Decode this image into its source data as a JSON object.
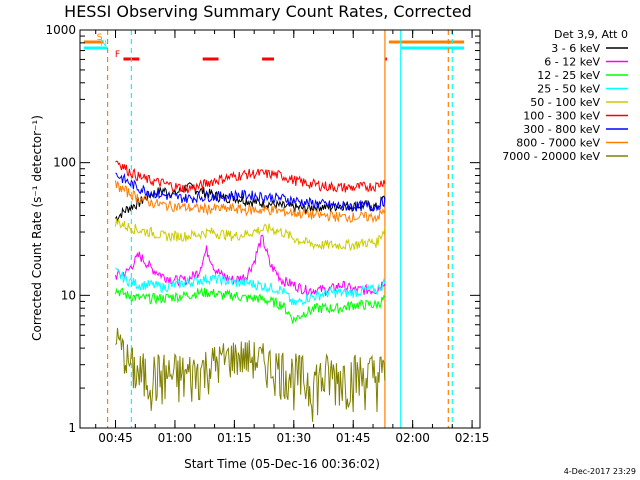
{
  "chart_data": {
    "type": "line",
    "title": "HESSI Observing Summary Count Rates, Corrected",
    "xlabel": "Start Time (05-Dec-16 00:36:02)",
    "ylabel": "Corrected Count Rate (s⁻¹ detector⁻¹)",
    "y_scale": "log",
    "ylim": [
      1,
      1000
    ],
    "xlim": [
      "00:36:02",
      "02:17:00"
    ],
    "x_ticks": [
      "00:45",
      "01:00",
      "01:15",
      "01:30",
      "01:45",
      "02:00",
      "02:15"
    ],
    "y_ticks": [
      "1",
      "10",
      "100",
      "1000"
    ],
    "grid": false,
    "legend_position": "right",
    "legend_title": "Det 3,9, Att 0",
    "footer": "4-Dec-2017 23:29",
    "flags": [
      {
        "label": "S",
        "color": "#ff7f00",
        "start": "00:37",
        "end": "00:42"
      },
      {
        "label": "N",
        "color": "#00ffff",
        "start": "00:37",
        "end": "00:43"
      },
      {
        "label": "F",
        "color": "#ff0000",
        "segments": [
          [
            "00:47",
            "00:51"
          ],
          [
            "01:07",
            "01:11"
          ],
          [
            "01:22",
            "01:25"
          ],
          [
            "01:53",
            "01:53"
          ]
        ]
      }
    ],
    "markers": [
      {
        "time": "00:43",
        "color": "#ff7f00",
        "style": "dashed"
      },
      {
        "time": "00:49",
        "color": "#00ffff",
        "style": "dashed"
      },
      {
        "time": "01:53",
        "color": "#ff7f00",
        "style": "solid"
      },
      {
        "time": "01:57",
        "color": "#00ffff",
        "style": "solid"
      },
      {
        "time": "02:09",
        "color": "#ff7f00",
        "style": "dashed"
      },
      {
        "time": "02:10",
        "color": "#00ffff",
        "style": "dashed"
      }
    ],
    "series": [
      {
        "name": "3 - 6 keV",
        "color": "#000000",
        "x": [
          "00:45",
          "00:48",
          "00:51",
          "00:54",
          "00:57",
          "01:00",
          "01:03",
          "01:06",
          "01:09",
          "01:12",
          "01:15",
          "01:18",
          "01:21",
          "01:24",
          "01:27",
          "01:30",
          "01:33",
          "01:36",
          "01:39",
          "01:42",
          "01:45",
          "01:48",
          "01:51",
          "01:53"
        ],
        "y": [
          38,
          45,
          50,
          58,
          62,
          58,
          66,
          62,
          58,
          54,
          55,
          52,
          50,
          49,
          47,
          46,
          45,
          47,
          46,
          48,
          47,
          48,
          46,
          55
        ]
      },
      {
        "name": "6 - 12 keV",
        "color": "#ff00ff",
        "x": [
          "00:45",
          "00:48",
          "00:51",
          "00:54",
          "00:57",
          "01:00",
          "01:03",
          "01:06",
          "01:08",
          "01:10",
          "01:12",
          "01:15",
          "01:18",
          "01:20",
          "01:22",
          "01:24",
          "01:27",
          "01:30",
          "01:33",
          "01:36",
          "01:39",
          "01:42",
          "01:45",
          "01:48",
          "01:51",
          "01:53"
        ],
        "y": [
          14,
          15,
          20,
          16,
          14,
          13,
          13,
          15,
          22,
          16,
          14,
          13,
          14,
          18,
          27,
          17,
          13,
          12,
          11,
          11,
          11,
          12,
          11,
          11,
          11,
          13
        ]
      },
      {
        "name": "12 - 25 keV",
        "color": "#00ff00",
        "x": [
          "00:45",
          "00:48",
          "00:51",
          "00:54",
          "00:57",
          "01:00",
          "01:03",
          "01:06",
          "01:09",
          "01:12",
          "01:15",
          "01:18",
          "01:21",
          "01:24",
          "01:27",
          "01:30",
          "01:33",
          "01:36",
          "01:39",
          "01:42",
          "01:45",
          "01:48",
          "01:51",
          "01:53"
        ],
        "y": [
          11,
          10,
          9.5,
          9.5,
          9.5,
          9.8,
          10,
          10.5,
          10.5,
          10,
          10,
          9.5,
          9.5,
          9,
          8.5,
          6.5,
          7.5,
          8,
          8,
          8,
          8.5,
          8.5,
          8.5,
          9.5
        ]
      },
      {
        "name": "25 - 50 keV",
        "color": "#00ffff",
        "x": [
          "00:45",
          "00:48",
          "00:51",
          "00:54",
          "00:57",
          "01:00",
          "01:03",
          "01:06",
          "01:09",
          "01:12",
          "01:15",
          "01:18",
          "01:21",
          "01:24",
          "01:27",
          "01:30",
          "01:33",
          "01:36",
          "01:39",
          "01:42",
          "01:45",
          "01:48",
          "01:51",
          "01:53"
        ],
        "y": [
          15,
          13,
          12,
          12,
          11.5,
          12,
          12.5,
          13,
          13.5,
          13,
          12.5,
          12.5,
          12,
          11.5,
          11,
          8.5,
          9.5,
          10,
          10.5,
          10.5,
          10.5,
          11,
          11,
          12.5
        ]
      },
      {
        "name": "50 - 100 keV",
        "color": "#cccc00",
        "x": [
          "00:45",
          "00:48",
          "00:51",
          "00:54",
          "00:57",
          "01:00",
          "01:03",
          "01:06",
          "01:09",
          "01:12",
          "01:15",
          "01:18",
          "01:21",
          "01:24",
          "01:27",
          "01:30",
          "01:33",
          "01:36",
          "01:39",
          "01:42",
          "01:45",
          "01:48",
          "01:51",
          "01:53"
        ],
        "y": [
          36,
          33,
          31,
          30,
          28,
          28,
          28,
          29,
          30,
          29,
          28,
          29,
          31,
          32,
          30,
          27,
          25,
          24,
          24,
          24,
          24,
          25,
          25,
          32
        ]
      },
      {
        "name": "100 - 300 keV",
        "color": "#ff0000",
        "x": [
          "00:45",
          "00:48",
          "00:51",
          "00:54",
          "00:57",
          "01:00",
          "01:03",
          "01:06",
          "01:09",
          "01:12",
          "01:15",
          "01:18",
          "01:21",
          "01:24",
          "01:27",
          "01:30",
          "01:33",
          "01:36",
          "01:39",
          "01:42",
          "01:45",
          "01:48",
          "01:51",
          "01:53"
        ],
        "y": [
          105,
          88,
          78,
          73,
          70,
          66,
          64,
          66,
          72,
          76,
          79,
          82,
          83,
          82,
          80,
          74,
          70,
          68,
          66,
          65,
          65,
          66,
          67,
          74
        ]
      },
      {
        "name": "300 - 800 keV",
        "color": "#0000ff",
        "x": [
          "00:45",
          "00:48",
          "00:51",
          "00:54",
          "00:57",
          "01:00",
          "01:03",
          "01:06",
          "01:09",
          "01:12",
          "01:15",
          "01:18",
          "01:21",
          "01:24",
          "01:27",
          "01:30",
          "01:33",
          "01:36",
          "01:39",
          "01:42",
          "01:45",
          "01:48",
          "01:51",
          "01:53"
        ],
        "y": [
          82,
          72,
          64,
          60,
          57,
          55,
          54,
          55,
          56,
          56,
          57,
          57,
          56,
          55,
          54,
          52,
          50,
          49,
          48,
          47,
          47,
          47,
          47,
          52
        ]
      },
      {
        "name": "800 - 7000 keV",
        "color": "#ff7f00",
        "x": [
          "00:45",
          "00:48",
          "00:51",
          "00:54",
          "00:57",
          "01:00",
          "01:03",
          "01:06",
          "01:09",
          "01:12",
          "01:15",
          "01:18",
          "01:21",
          "01:24",
          "01:27",
          "01:30",
          "01:33",
          "01:36",
          "01:39",
          "01:42",
          "01:45",
          "01:48",
          "01:51",
          "01:53"
        ],
        "y": [
          68,
          60,
          54,
          50,
          48,
          47,
          46,
          45,
          45,
          45,
          45,
          44,
          44,
          44,
          43,
          42,
          41,
          40,
          40,
          39,
          39,
          39,
          39,
          43
        ]
      },
      {
        "name": "7000 - 20000 keV",
        "color": "#808000",
        "x": [
          "00:45",
          "00:48",
          "00:51",
          "00:54",
          "00:57",
          "01:00",
          "01:03",
          "01:06",
          "01:09",
          "01:12",
          "01:15",
          "01:18",
          "01:21",
          "01:24",
          "01:27",
          "01:30",
          "01:33",
          "01:36",
          "01:39",
          "01:42",
          "01:45",
          "01:48",
          "01:51",
          "01:53"
        ],
        "y": [
          5,
          3.2,
          2.5,
          2.5,
          2.5,
          2.5,
          2.5,
          2.7,
          3,
          3.3,
          3.5,
          3.5,
          3.3,
          3,
          2.8,
          2.5,
          2.3,
          2.3,
          2.5,
          2.5,
          2.5,
          2.5,
          2.5,
          2.5
        ]
      }
    ]
  }
}
